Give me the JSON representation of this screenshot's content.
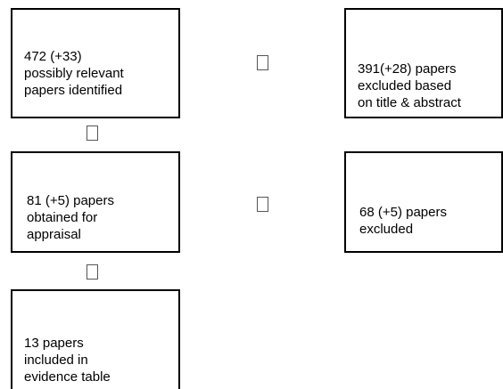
{
  "boxes": {
    "identified": "472 (+33)\npossibly relevant\npapers identified",
    "excluded_title_abstract": "391(+28) papers\nexcluded based\non title & abstract",
    "obtained": "81 (+5) papers\nobtained for\nappraisal",
    "excluded": "68 (+5) papers\nexcluded",
    "included": "13 papers\nincluded in\nevidence table"
  },
  "connectors": [
    {
      "from": "identified",
      "to": "excluded_title_abstract",
      "icon": "missing-glyph-arrow-right"
    },
    {
      "from": "identified",
      "to": "obtained",
      "icon": "missing-glyph-arrow-down"
    },
    {
      "from": "obtained",
      "to": "excluded",
      "icon": "missing-glyph-arrow-right"
    },
    {
      "from": "obtained",
      "to": "included",
      "icon": "missing-glyph-arrow-down"
    }
  ]
}
